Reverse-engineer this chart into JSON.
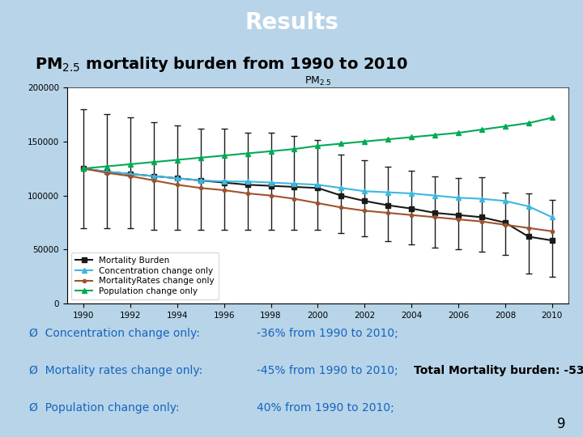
{
  "title": "Results",
  "title_bg": "#2196C8",
  "subtitle_text": "PM mortality burden from 1990 to 2010",
  "chart_title": "PM",
  "background_color": "#B8D4E8",
  "years": [
    1990,
    1991,
    1992,
    1993,
    1994,
    1995,
    1996,
    1997,
    1998,
    1999,
    2000,
    2001,
    2002,
    2003,
    2004,
    2005,
    2006,
    2007,
    2008,
    2009,
    2010
  ],
  "mortality_burden": [
    125000,
    122000,
    120000,
    118000,
    116000,
    114000,
    112000,
    110000,
    109000,
    108000,
    107000,
    100000,
    95000,
    91000,
    88000,
    84000,
    82000,
    80000,
    75000,
    62000,
    58500
  ],
  "mortality_upper": [
    180000,
    175000,
    172000,
    168000,
    165000,
    162000,
    162000,
    158000,
    158000,
    155000,
    151000,
    138000,
    133000,
    127000,
    123000,
    118000,
    116000,
    117000,
    103000,
    102000,
    96000
  ],
  "mortality_lower": [
    70000,
    70000,
    70000,
    68000,
    68000,
    68000,
    68000,
    68000,
    68000,
    68000,
    68000,
    65000,
    62000,
    58000,
    55000,
    52000,
    50000,
    48000,
    45000,
    28000,
    25000
  ],
  "concentration_change": [
    125000,
    122000,
    120000,
    118000,
    116000,
    114000,
    113000,
    113000,
    112000,
    111000,
    110000,
    107000,
    104000,
    103000,
    102000,
    100000,
    98000,
    97000,
    95000,
    90000,
    80000
  ],
  "mortality_rates_change": [
    125000,
    121000,
    118000,
    114000,
    110000,
    107000,
    105000,
    102000,
    100000,
    97000,
    93000,
    89000,
    86000,
    84000,
    82000,
    80000,
    78000,
    76000,
    73000,
    70000,
    67000
  ],
  "population_change": [
    125000,
    127000,
    129000,
    131000,
    133000,
    135000,
    137000,
    139000,
    141000,
    143000,
    146000,
    148000,
    150000,
    152000,
    154000,
    156000,
    158000,
    161000,
    164000,
    167000,
    172000
  ],
  "ylim": [
    0,
    200000
  ],
  "yticks": [
    0,
    50000,
    100000,
    150000,
    200000
  ],
  "xticks": [
    1990,
    1992,
    1994,
    1996,
    1998,
    2000,
    2002,
    2004,
    2006,
    2008,
    2010
  ],
  "color_black": "#1a1a1a",
  "color_cyan": "#3CB8E0",
  "color_brown": "#A0522D",
  "color_green": "#00AA55",
  "text_color": "#1565C0",
  "slide_num": "9",
  "title_fontsize": 20,
  "subtitle_fontsize": 14,
  "annotation_fontsize": 10,
  "chart_bg": "#FFFFFF"
}
